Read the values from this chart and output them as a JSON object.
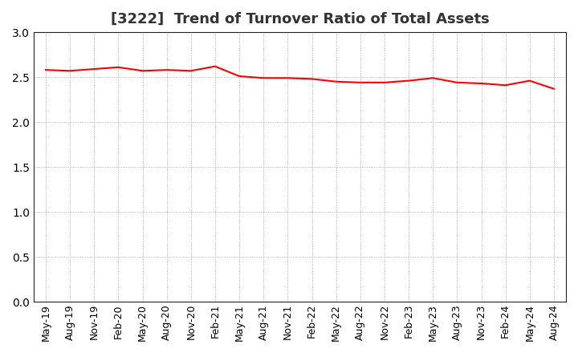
{
  "title": "[3222]  Trend of Turnover Ratio of Total Assets",
  "x_labels": [
    "May-19",
    "Aug-19",
    "Nov-19",
    "Feb-20",
    "May-20",
    "Aug-20",
    "Nov-20",
    "Feb-21",
    "May-21",
    "Aug-21",
    "Nov-21",
    "Feb-22",
    "May-22",
    "Aug-22",
    "Nov-22",
    "Feb-23",
    "May-23",
    "Aug-23",
    "Nov-23",
    "Feb-24",
    "May-24",
    "Aug-24"
  ],
  "values": [
    2.58,
    2.57,
    2.59,
    2.61,
    2.57,
    2.58,
    2.57,
    2.62,
    2.51,
    2.49,
    2.49,
    2.48,
    2.45,
    2.44,
    2.44,
    2.46,
    2.49,
    2.44,
    2.43,
    2.41,
    2.46,
    2.37
  ],
  "line_color": "#ff0000",
  "line_width": 1.5,
  "ylim": [
    0.0,
    3.0
  ],
  "yticks": [
    0.0,
    0.5,
    1.0,
    1.5,
    2.0,
    2.5,
    3.0
  ],
  "background_color": "#ffffff",
  "grid_color": "#999999",
  "title_fontsize": 13,
  "tick_fontsize": 9,
  "spine_color": "#222222"
}
